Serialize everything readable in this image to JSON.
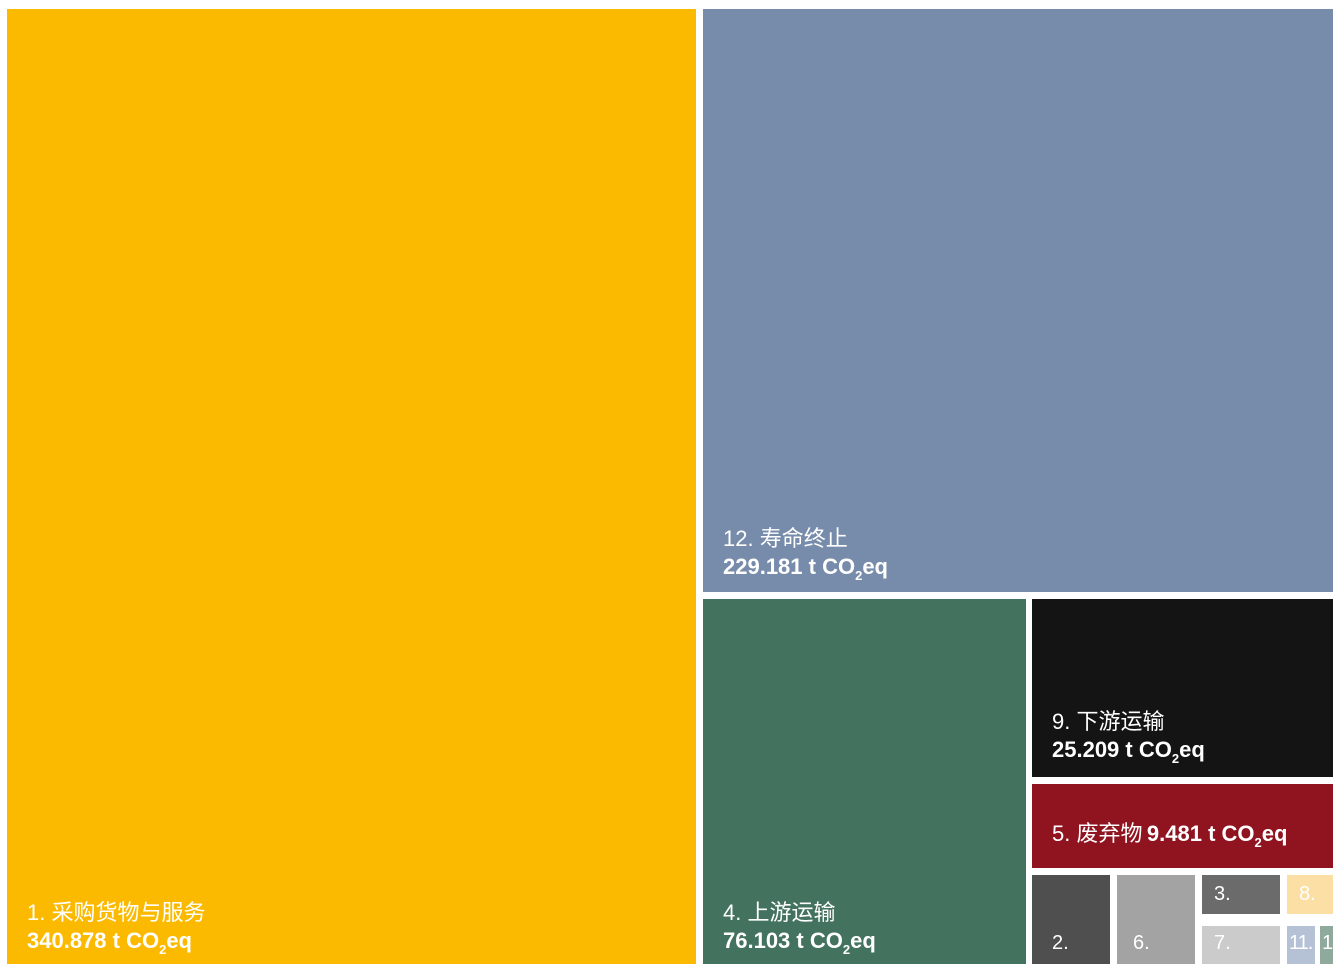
{
  "chart_data": {
    "type": "treemap",
    "unit": "t CO2eq",
    "items": [
      {
        "id": "t1",
        "label": "1. 采购货物与服务",
        "value": 340.878,
        "value_text": "340.878 t CO",
        "value_suffix": "eq",
        "color": "#FBBA00"
      },
      {
        "id": "t12",
        "label": "12. 寿命终止",
        "value": 229.181,
        "value_text": "229.181 t CO",
        "value_suffix": "eq",
        "color": "#778CAB"
      },
      {
        "id": "t4",
        "label": "4. 上游运输",
        "value": 76.103,
        "value_text": "76.103 t CO",
        "value_suffix": "eq",
        "color": "#43725E"
      },
      {
        "id": "t9",
        "label": "9. 下游运输",
        "value": 25.209,
        "value_text": "25.209 t CO",
        "value_suffix": "eq",
        "color": "#141414"
      },
      {
        "id": "t5",
        "label": "5. 废弃物",
        "value": 9.481,
        "value_text": "9.481 t CO",
        "value_suffix": "eq",
        "color": "#8F1420"
      },
      {
        "id": "t2",
        "label": "2.",
        "value": null,
        "color": "#4F4F4F"
      },
      {
        "id": "t6",
        "label": "6.",
        "value": null,
        "color": "#A3A3A3"
      },
      {
        "id": "t3",
        "label": "3.",
        "value": null,
        "color": "#6B6B6B"
      },
      {
        "id": "t8",
        "label": "8.",
        "value": null,
        "color": "#FBDFA4"
      },
      {
        "id": "t7",
        "label": "7.",
        "value": null,
        "color": "#CBCBCB"
      },
      {
        "id": "t11",
        "label": "11.",
        "value": null,
        "color": "#B5C2D6"
      },
      {
        "id": "t1x",
        "label": "1",
        "value": null,
        "color": "#8FA99C"
      }
    ],
    "subscript": "2"
  }
}
